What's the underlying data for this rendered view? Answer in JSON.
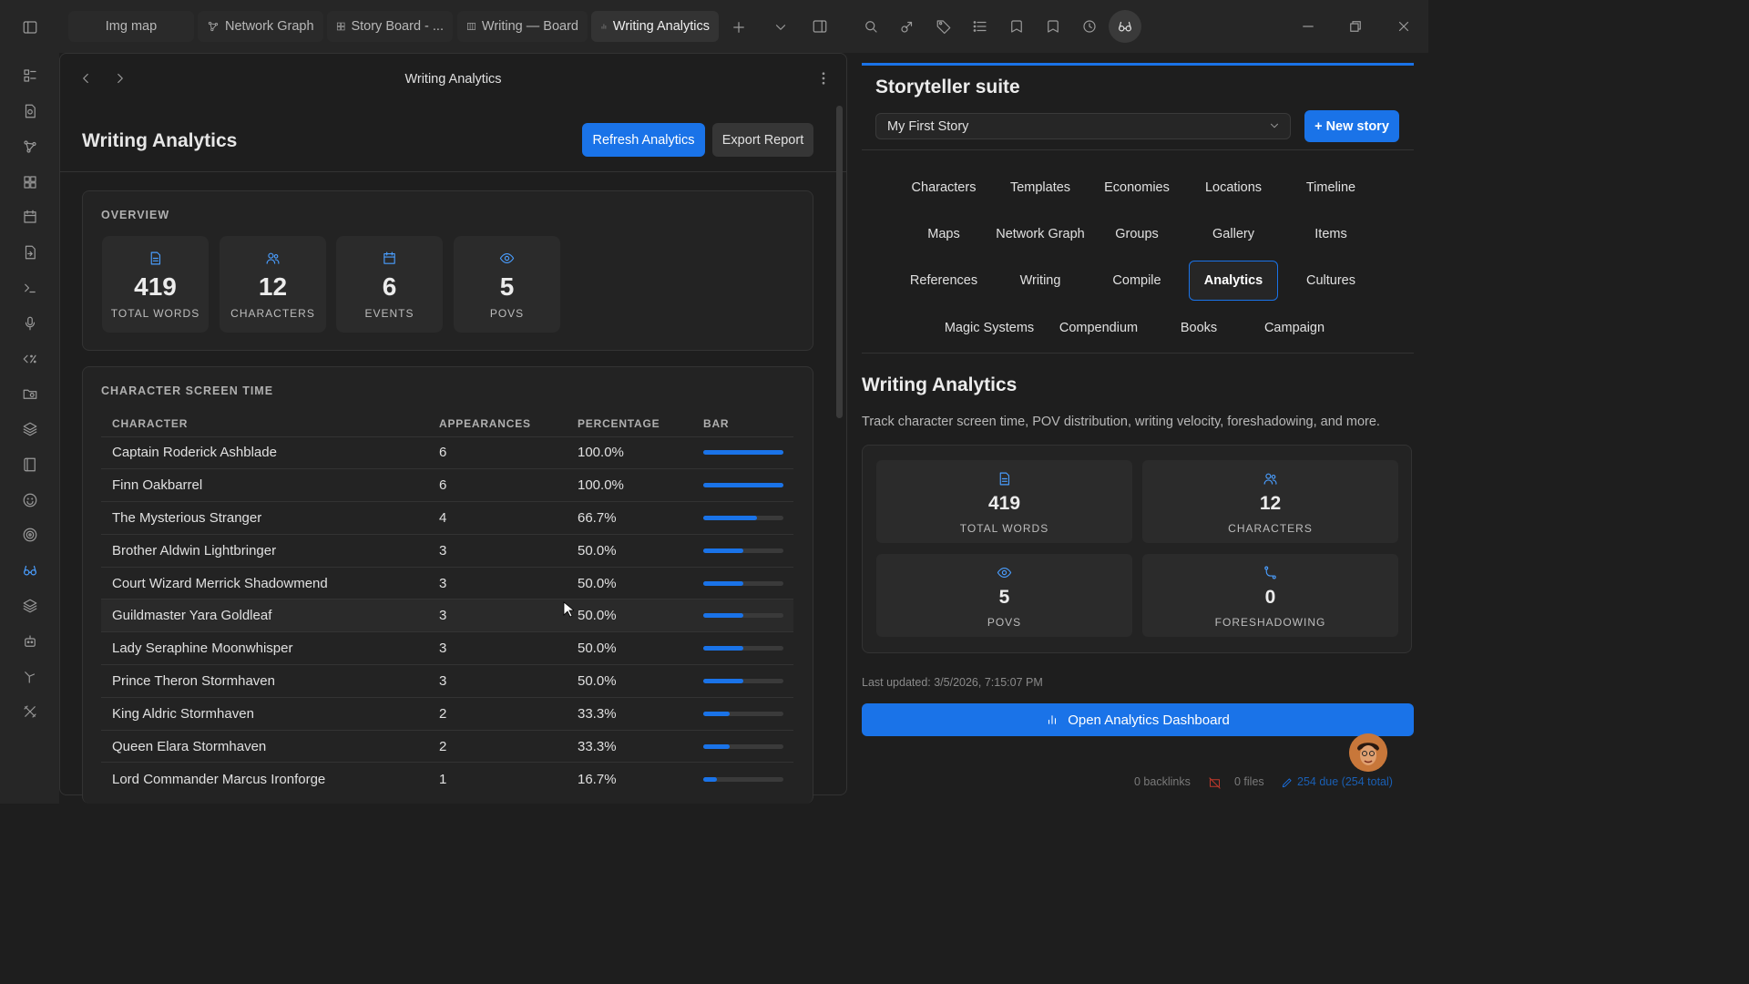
{
  "tabs": [
    {
      "label": "Img map",
      "icon": "none"
    },
    {
      "label": "Network Graph",
      "icon": "graph-icon"
    },
    {
      "label": "Story Board - ...",
      "icon": "grid-icon"
    },
    {
      "label": "Writing — Board",
      "icon": "board-icon"
    },
    {
      "label": "Writing Analytics",
      "icon": "chart-icon",
      "active": true
    }
  ],
  "left_pane": {
    "header_title": "Writing Analytics",
    "page_title": "Writing Analytics",
    "refresh_label": "Refresh Analytics",
    "export_label": "Export Report",
    "overview_label": "OVERVIEW",
    "stats": [
      {
        "value": "419",
        "label": "TOTAL WORDS",
        "icon": "document-icon"
      },
      {
        "value": "12",
        "label": "CHARACTERS",
        "icon": "users-icon"
      },
      {
        "value": "6",
        "label": "EVENTS",
        "icon": "calendar-icon"
      },
      {
        "value": "5",
        "label": "POVS",
        "icon": "eye-icon"
      }
    ],
    "screen_time_label": "CHARACTER SCREEN TIME",
    "columns": [
      "CHARACTER",
      "APPEARANCES",
      "PERCENTAGE",
      "BAR"
    ],
    "rows": [
      {
        "name": "Captain Roderick Ashblade",
        "appearances": "6",
        "percentage": "100.0%",
        "fraction": 1.0
      },
      {
        "name": "Finn Oakbarrel",
        "appearances": "6",
        "percentage": "100.0%",
        "fraction": 1.0
      },
      {
        "name": "The Mysterious Stranger",
        "appearances": "4",
        "percentage": "66.7%",
        "fraction": 0.667
      },
      {
        "name": "Brother Aldwin Lightbringer",
        "appearances": "3",
        "percentage": "50.0%",
        "fraction": 0.5
      },
      {
        "name": "Court Wizard Merrick Shadowmend",
        "appearances": "3",
        "percentage": "50.0%",
        "fraction": 0.5
      },
      {
        "name": "Guildmaster Yara Goldleaf",
        "appearances": "3",
        "percentage": "50.0%",
        "fraction": 0.5
      },
      {
        "name": "Lady Seraphine Moonwhisper",
        "appearances": "3",
        "percentage": "50.0%",
        "fraction": 0.5
      },
      {
        "name": "Prince Theron Stormhaven",
        "appearances": "3",
        "percentage": "50.0%",
        "fraction": 0.5
      },
      {
        "name": "King Aldric Stormhaven",
        "appearances": "2",
        "percentage": "33.3%",
        "fraction": 0.333
      },
      {
        "name": "Queen Elara Stormhaven",
        "appearances": "2",
        "percentage": "33.3%",
        "fraction": 0.333
      },
      {
        "name": "Lord Commander Marcus Ironforge",
        "appearances": "1",
        "percentage": "16.7%",
        "fraction": 0.167
      }
    ]
  },
  "right_pane": {
    "title": "Storyteller suite",
    "story_select": "My First Story",
    "new_story_label": "+ New story",
    "nav": [
      [
        "Characters",
        "Templates",
        "Economies",
        "Locations",
        "Timeline"
      ],
      [
        "Maps",
        "Network Graph",
        "Groups",
        "Gallery",
        "Items"
      ],
      [
        "References",
        "Writing",
        "Compile",
        "Analytics",
        "Cultures"
      ],
      [
        "Magic Systems",
        "Compendium",
        "Books",
        "Campaign"
      ]
    ],
    "active_nav": "Analytics",
    "section_title": "Writing Analytics",
    "section_desc": "Track character screen time, POV distribution, writing velocity, foreshadowing, and more.",
    "stats": [
      {
        "value": "419",
        "label": "TOTAL WORDS",
        "icon": "document-icon"
      },
      {
        "value": "12",
        "label": "CHARACTERS",
        "icon": "users-icon"
      },
      {
        "value": "5",
        "label": "POVS",
        "icon": "eye-icon"
      },
      {
        "value": "0",
        "label": "FORESHADOWING",
        "icon": "branch-icon"
      }
    ],
    "last_updated": "Last updated: 3/5/2026, 7:15:07 PM",
    "open_dashboard_label": "Open Analytics Dashboard"
  },
  "status": {
    "backlinks": "0 backlinks",
    "files": "0 files",
    "due": "254 due (254 total)"
  },
  "colors": {
    "accent": "#1a73e8",
    "icon_accent": "#4a9eff"
  }
}
